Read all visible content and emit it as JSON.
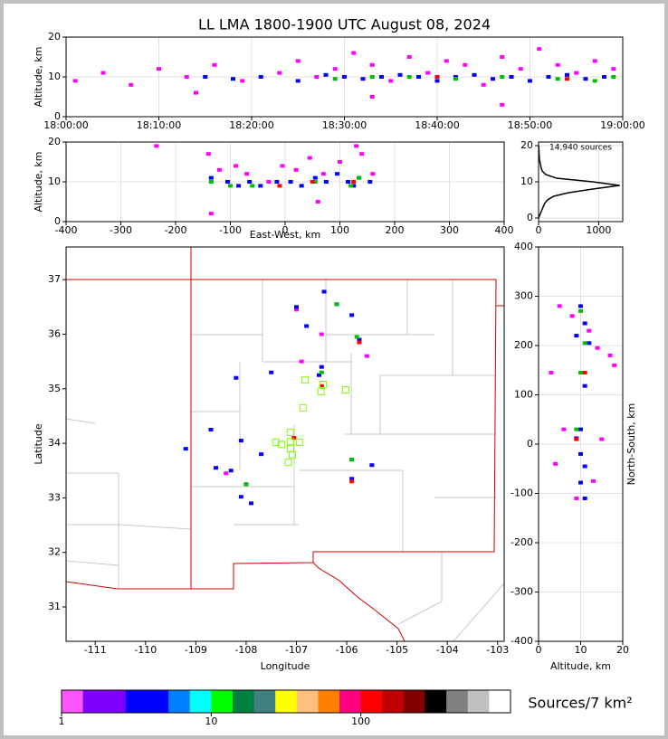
{
  "chart_data": [
    {
      "type": "scatter",
      "title": "LL LMA 1800-1900 UTC August 08, 2024",
      "ylabel": "Altitude, km",
      "xlim": [
        0,
        60
      ],
      "xticks": [
        {
          "value": 0,
          "label": "18:00:00"
        },
        {
          "value": 10,
          "label": "18:10:00"
        },
        {
          "value": 20,
          "label": "18:20:00"
        },
        {
          "value": 30,
          "label": "18:30:00"
        },
        {
          "value": 40,
          "label": "18:40:00"
        },
        {
          "value": 50,
          "label": "18:50:00"
        },
        {
          "value": 60,
          "label": "19:00:00"
        }
      ],
      "ylim": [
        0,
        20
      ],
      "yticks": [
        0,
        10,
        20
      ],
      "grid": true,
      "series": [
        {
          "color": "#ff00ff",
          "x": [
            1,
            4,
            7,
            10,
            13,
            16,
            19,
            23,
            25,
            27,
            29,
            31,
            33,
            35,
            37,
            39,
            41,
            43,
            45,
            47,
            49,
            51,
            53,
            55,
            57,
            59,
            14,
            33,
            47
          ],
          "y": [
            9,
            11,
            8,
            12,
            10,
            13,
            9,
            11,
            14,
            10,
            12,
            16,
            13,
            9,
            15,
            11,
            14,
            13,
            8,
            15,
            12,
            17,
            13,
            11,
            14,
            12,
            6,
            5,
            3
          ]
        },
        {
          "color": "#0000ff",
          "x": [
            15,
            18,
            21,
            25,
            28,
            30,
            32,
            34,
            36,
            38,
            40,
            42,
            44,
            46,
            48,
            50,
            52,
            54,
            56,
            58
          ],
          "y": [
            10,
            9.5,
            10,
            9,
            10.5,
            10,
            9.5,
            10,
            10.5,
            10,
            9,
            10,
            10.5,
            9.5,
            10,
            9,
            10,
            10.5,
            9.5,
            10
          ]
        },
        {
          "color": "#00c000",
          "x": [
            29,
            33,
            37,
            42,
            47,
            53,
            57,
            59
          ],
          "y": [
            9.5,
            10,
            10,
            9.5,
            10,
            9.5,
            9,
            10
          ]
        },
        {
          "color": "#ff0000",
          "x": [
            40,
            54
          ],
          "y": [
            10,
            9.5
          ]
        }
      ]
    },
    {
      "type": "scatter",
      "xlabel": "East-West, km",
      "ylabel": "Altitude, km",
      "xlim": [
        -400,
        400
      ],
      "xticks": [
        -400,
        -300,
        -200,
        -100,
        0,
        100,
        200,
        300,
        400
      ],
      "ylim": [
        0,
        20
      ],
      "yticks": [
        0,
        10,
        20
      ],
      "grid": true,
      "series": [
        {
          "color": "#ff00ff",
          "x": [
            -235,
            -140,
            -120,
            -90,
            -70,
            -30,
            -5,
            20,
            45,
            70,
            100,
            140,
            160,
            -135,
            60,
            130
          ],
          "y": [
            19,
            17,
            13,
            14,
            12,
            10,
            14,
            13,
            16,
            12,
            15,
            17,
            12,
            2,
            5,
            19
          ]
        },
        {
          "color": "#0000ff",
          "x": [
            -135,
            -105,
            -85,
            -65,
            -45,
            -15,
            10,
            30,
            55,
            75,
            95,
            115,
            125,
            135,
            155
          ],
          "y": [
            11,
            10,
            9,
            10,
            9,
            10,
            10,
            9,
            11,
            10,
            12,
            10,
            9,
            11,
            10
          ]
        },
        {
          "color": "#00c000",
          "x": [
            -135,
            -100,
            -60,
            55,
            120,
            135
          ],
          "y": [
            10,
            9,
            9,
            10,
            9,
            11
          ]
        },
        {
          "color": "#ff0000",
          "x": [
            -10,
            50,
            125
          ],
          "y": [
            9,
            10,
            10
          ]
        }
      ]
    },
    {
      "type": "line",
      "annotation": "14,940 sources",
      "color": "#000000",
      "xlim": [
        0,
        1400
      ],
      "xticks": [
        0,
        1000
      ],
      "ylim": [
        -1,
        21
      ],
      "yticks": [
        0,
        10,
        20
      ],
      "grid": true,
      "x": [
        0,
        50,
        100,
        150,
        250,
        500,
        900,
        1350,
        900,
        300,
        120,
        60,
        40,
        30,
        15,
        8,
        3
      ],
      "y": [
        0,
        2,
        4,
        5,
        6,
        7,
        8,
        9,
        10,
        11,
        12,
        13,
        14,
        15,
        16,
        18,
        20
      ]
    },
    {
      "type": "scatter",
      "xlabel": "Longitude",
      "ylabel": "Latitude",
      "xlim": [
        -111.58,
        -102.87
      ],
      "xticks": [
        -111,
        -110,
        -109,
        -108,
        -107,
        -106,
        -105,
        -104,
        -103
      ],
      "ylim": [
        30.37,
        37.6
      ],
      "yticks": [
        31,
        32,
        33,
        34,
        35,
        36,
        37
      ],
      "series": [
        {
          "color": "#ff00ff",
          "x": [
            -106.5,
            -105.6,
            -107.0,
            -106.9,
            -108.4
          ],
          "y": [
            36.0,
            35.6,
            36.45,
            35.5,
            33.45
          ]
        },
        {
          "color": "#0000ff",
          "x": [
            -106.45,
            -106.2,
            -107.0,
            -106.8,
            -105.9,
            -105.75,
            -106.5,
            -106.55,
            -107.5,
            -108.2,
            -108.7,
            -108.1,
            -108.3,
            -108.0,
            -108.1,
            -107.9,
            -105.9,
            -105.5,
            -105.9,
            -108.6,
            -109.2,
            -107.7
          ],
          "y": [
            36.78,
            36.55,
            36.5,
            36.15,
            36.35,
            35.9,
            35.4,
            35.25,
            35.3,
            35.2,
            34.25,
            34.05,
            33.5,
            33.25,
            33.02,
            32.9,
            33.35,
            33.6,
            33.7,
            33.55,
            33.9,
            33.8
          ]
        },
        {
          "color": "#00c000",
          "x": [
            -106.2,
            -105.8,
            -106.5,
            -108.0,
            -105.9
          ],
          "y": [
            36.55,
            35.95,
            35.3,
            33.25,
            33.7
          ]
        },
        {
          "color": "#ff0000",
          "x": [
            -105.75,
            -107.05,
            -106.5,
            -105.9
          ],
          "y": [
            35.85,
            34.1,
            35.05,
            33.3
          ]
        },
        {
          "color": "#80ff00",
          "marker": "square",
          "x": [
            -106.83,
            -106.47,
            -106.02,
            -106.51,
            -106.87,
            -107.12,
            -107.41,
            -107.3,
            -107.12,
            -106.94,
            -107.08,
            -107.16,
            -107.12
          ],
          "y": [
            35.16,
            35.08,
            34.98,
            34.95,
            34.65,
            34.2,
            34.02,
            33.98,
            33.9,
            34.02,
            33.79,
            33.65,
            34.03
          ]
        }
      ]
    },
    {
      "type": "scatter",
      "xlabel": "Altitude, km",
      "ylabel": "North-South, km",
      "xlim": [
        0,
        20
      ],
      "xticks": [
        0,
        10,
        20
      ],
      "ylim": [
        -400,
        400
      ],
      "yticks": [
        -400,
        -300,
        -200,
        -100,
        0,
        100,
        200,
        300,
        400
      ],
      "grid": true,
      "series": [
        {
          "color": "#ff00ff",
          "x": [
            5,
            8,
            12,
            14,
            3,
            18,
            6,
            15,
            4,
            13,
            9,
            17
          ],
          "y": [
            280,
            260,
            230,
            195,
            145,
            160,
            30,
            10,
            -40,
            -75,
            -110,
            180
          ]
        },
        {
          "color": "#0000ff",
          "x": [
            10,
            11,
            9,
            12,
            10,
            11,
            10,
            9,
            10,
            11,
            10,
            11
          ],
          "y": [
            280,
            245,
            220,
            205,
            145,
            118,
            30,
            12,
            -20,
            -45,
            -78,
            -110
          ]
        },
        {
          "color": "#00c000",
          "x": [
            10,
            11,
            10,
            9
          ],
          "y": [
            270,
            205,
            145,
            30
          ]
        },
        {
          "color": "#ff0000",
          "x": [
            11,
            9
          ],
          "y": [
            145,
            10
          ]
        }
      ]
    },
    {
      "type": "colorbar",
      "label": "Sources/7 km²",
      "log": true,
      "xlim": [
        1,
        1000
      ],
      "xticks": [
        1,
        10,
        100
      ],
      "colors": [
        "#ff55ff",
        "#8000ff",
        "#8000ff",
        "#0000ff",
        "#0000ff",
        "#0080ff",
        "#00ffff",
        "#00ff00",
        "#008040",
        "#408080",
        "#ffff00",
        "#ffc080",
        "#ff8000",
        "#ff0080",
        "#ff0000",
        "#c00000",
        "#800000",
        "#000000",
        "#808080",
        "#c0c0c0",
        "#ffffff"
      ]
    }
  ]
}
